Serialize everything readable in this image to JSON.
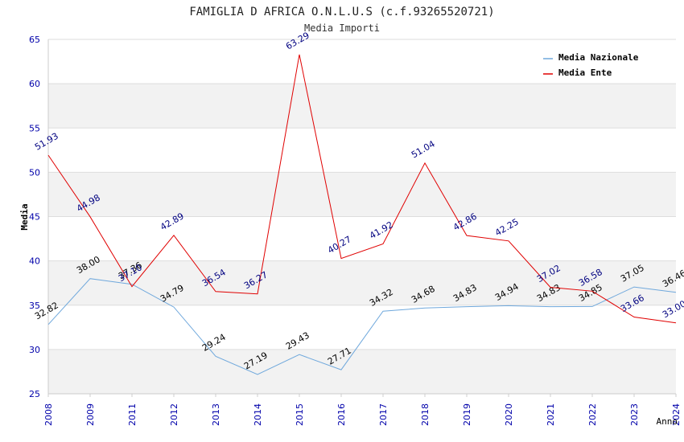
{
  "chart_data": {
    "type": "line",
    "title": "FAMIGLIA D AFRICA O.N.L.U.S (c.f.93265520721)",
    "subtitle": "Media Importi",
    "xlabel": "Anno",
    "ylabel": "Media",
    "ylim": [
      25,
      65
    ],
    "yticks": [
      "25",
      "30",
      "35",
      "40",
      "45",
      "50",
      "55",
      "60",
      "65"
    ],
    "categories": [
      "2008",
      "2009",
      "2011",
      "2012",
      "2013",
      "2014",
      "2015",
      "2016",
      "2017",
      "2018",
      "2019",
      "2020",
      "2021",
      "2022",
      "2023",
      "2024"
    ],
    "legend_position": "top-right",
    "grid": true,
    "series": [
      {
        "name": "Media Nazionale",
        "color": "#6fa8dc",
        "label_color": "#000000",
        "values": [
          32.82,
          38.0,
          37.36,
          34.79,
          29.24,
          27.19,
          29.43,
          27.71,
          34.32,
          34.68,
          34.83,
          34.94,
          34.83,
          34.85,
          37.05,
          36.46
        ],
        "labels": [
          "32.82",
          "38.00",
          "37.36",
          "34.79",
          "29.24",
          "27.19",
          "29.43",
          "27.71",
          "34.32",
          "34.68",
          "34.83",
          "34.94",
          "34.83",
          "34.85",
          "37.05",
          "36.46"
        ]
      },
      {
        "name": "Media Ente",
        "color": "#e00000",
        "label_color": "#000080",
        "values": [
          51.93,
          44.98,
          37.1,
          42.89,
          36.54,
          36.27,
          63.29,
          40.27,
          41.92,
          51.04,
          42.86,
          42.25,
          37.02,
          36.58,
          33.66,
          33.0
        ],
        "labels": [
          "51.93",
          "44.98",
          "37.10",
          "42.89",
          "36.54",
          "36.27",
          "63.29",
          "40.27",
          "41.92",
          "51.04",
          "42.86",
          "42.25",
          "37.02",
          "36.58",
          "33.66",
          "33.00"
        ]
      }
    ]
  },
  "colors": {
    "band": "#f2f2f2",
    "grid": "#dddddd",
    "tick_text": "#0000aa"
  }
}
